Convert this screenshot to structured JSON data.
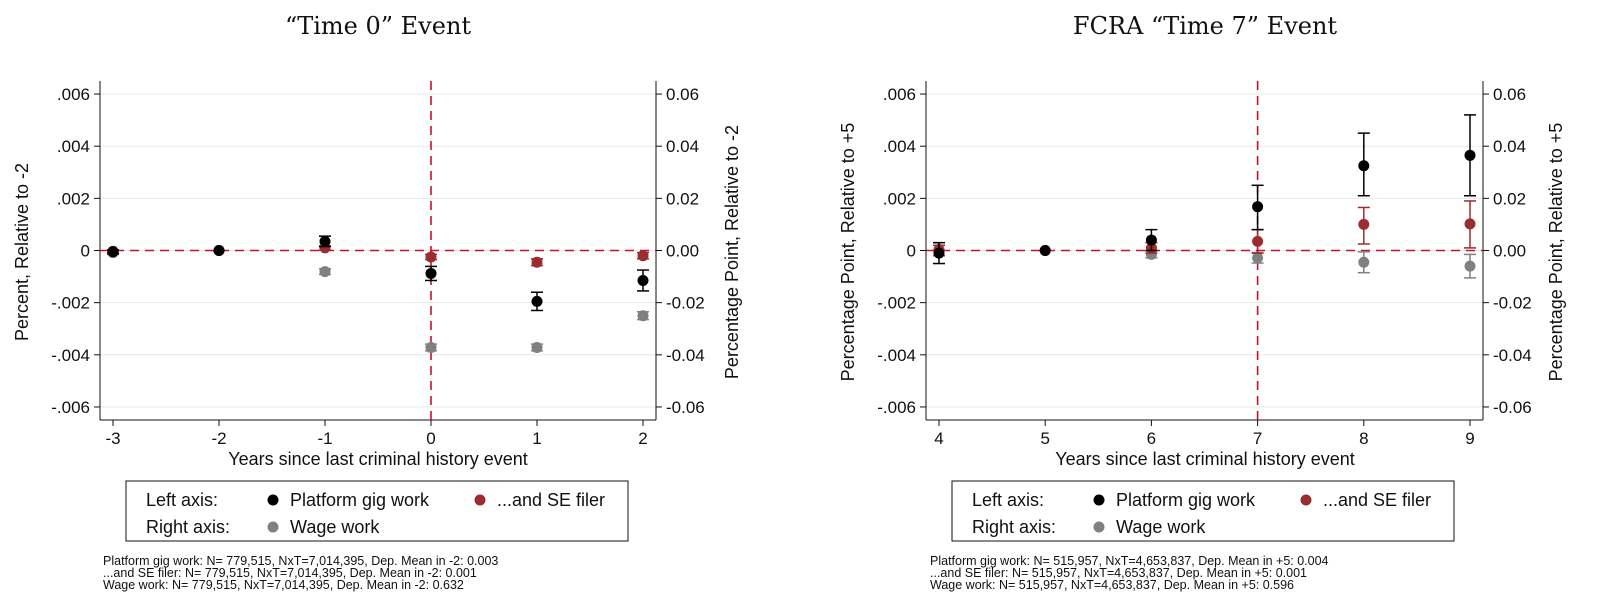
{
  "chart_data": [
    {
      "type": "scatter",
      "title": "“Time 0” Event",
      "xlabel": "Years since last criminal history event",
      "ylabel_left": "Percent, Relative to -2",
      "ylabel_right": "Percentage Point, Relative to -2",
      "x_ticks": [
        "-3",
        "-2",
        "-1",
        "0",
        "1",
        "2"
      ],
      "x_values": [
        -3,
        -2,
        -1,
        0,
        1,
        2
      ],
      "xlim": [
        -3,
        2
      ],
      "ylim_left": [
        -0.0065,
        0.0065
      ],
      "ylim_right": [
        -0.065,
        0.065
      ],
      "y_ticks_left": [
        {
          "value": 0.006,
          "label": ".006"
        },
        {
          "value": 0.004,
          "label": ".004"
        },
        {
          "value": 0.002,
          "label": ".002"
        },
        {
          "value": 0,
          "label": "0"
        },
        {
          "value": -0.002,
          "label": "-.002"
        },
        {
          "value": -0.004,
          "label": "-.004"
        },
        {
          "value": -0.006,
          "label": "-.006"
        }
      ],
      "y_ticks_right": [
        {
          "value": 0.06,
          "label": "0.06"
        },
        {
          "value": 0.04,
          "label": "0.04"
        },
        {
          "value": 0.02,
          "label": "0.02"
        },
        {
          "value": 0,
          "label": "0.00"
        },
        {
          "value": -0.02,
          "label": "-0.02"
        },
        {
          "value": -0.04,
          "label": "-0.04"
        },
        {
          "value": -0.06,
          "label": "-0.06"
        }
      ],
      "event_x": 0,
      "grid": true,
      "series": [
        {
          "name": "Platform gig work",
          "axis": "left",
          "color": "#000000",
          "x": [
            -3,
            -2,
            -1,
            0,
            1,
            2
          ],
          "y": [
            -5e-05,
            0,
            0.00035,
            -0.00088,
            -0.00195,
            -0.00115
          ],
          "ci_low": [
            -0.00012,
            0,
            0.00015,
            -0.00115,
            -0.0023,
            -0.00155
          ],
          "ci_high": [
            2e-05,
            0,
            0.00055,
            -0.00061,
            -0.0016,
            -0.00075
          ]
        },
        {
          "name": "...and SE filer",
          "axis": "left",
          "color": "#9b2d30",
          "x": [
            -3,
            -2,
            -1,
            0,
            1,
            2
          ],
          "y": [
            -3e-05,
            0,
            0.0001,
            -0.00025,
            -0.00045,
            -0.0002
          ],
          "ci_low": [
            -8e-05,
            0,
            2e-05,
            -0.00035,
            -0.00058,
            -0.00032
          ],
          "ci_high": [
            2e-05,
            0,
            0.00018,
            -0.00015,
            -0.00032,
            -8e-05
          ]
        },
        {
          "name": "Wage work",
          "axis": "right",
          "color": "#808080",
          "x": [
            -3,
            -2,
            -1,
            0,
            1,
            2
          ],
          "y": [
            -0.0008,
            0,
            -0.0081,
            -0.0372,
            -0.0372,
            -0.025
          ],
          "ci_low": [
            -0.0015,
            0,
            -0.0092,
            -0.0385,
            -0.0385,
            -0.0265
          ],
          "ci_high": [
            -0.0001,
            0,
            -0.007,
            -0.0359,
            -0.0359,
            -0.0235
          ]
        }
      ],
      "legend": {
        "left_label": "Left axis:",
        "right_label": "Right axis:",
        "entries": [
          "Platform gig work",
          "...and SE filer",
          "Wage work"
        ]
      },
      "notes": [
        "Platform gig work: N=  779,515, NxT=7,014,395, Dep. Mean in -2: 0.003",
        "...and SE filer: N=  779,515, NxT=7,014,395, Dep. Mean in -2: 0.001",
        "Wage work: N=  779,515, NxT=7,014,395, Dep. Mean in -2: 0.632"
      ]
    },
    {
      "type": "scatter",
      "title": "FCRA “Time 7” Event",
      "xlabel": "Years since last criminal history event",
      "ylabel_left": "Percentage Point, Relative to +5",
      "ylabel_right": "Percentage Point, Relative to +5",
      "x_ticks": [
        "4",
        "5",
        "6",
        "7",
        "8",
        "9"
      ],
      "x_values": [
        4,
        5,
        6,
        7,
        8,
        9
      ],
      "xlim": [
        4,
        9
      ],
      "ylim_left": [
        -0.0065,
        0.0065
      ],
      "ylim_right": [
        -0.065,
        0.065
      ],
      "y_ticks_left": [
        {
          "value": 0.006,
          "label": ".006"
        },
        {
          "value": 0.004,
          "label": ".004"
        },
        {
          "value": 0.002,
          "label": ".002"
        },
        {
          "value": 0,
          "label": "0"
        },
        {
          "value": -0.002,
          "label": "-.002"
        },
        {
          "value": -0.004,
          "label": "-.004"
        },
        {
          "value": -0.006,
          "label": "-.006"
        }
      ],
      "y_ticks_right": [
        {
          "value": 0.06,
          "label": "0.06"
        },
        {
          "value": 0.04,
          "label": "0.04"
        },
        {
          "value": 0.02,
          "label": "0.02"
        },
        {
          "value": 0,
          "label": "0.00"
        },
        {
          "value": -0.02,
          "label": "-0.02"
        },
        {
          "value": -0.04,
          "label": "-0.04"
        },
        {
          "value": -0.06,
          "label": "-0.06"
        }
      ],
      "event_x": 7,
      "grid": true,
      "series": [
        {
          "name": "Platform gig work",
          "axis": "left",
          "color": "#000000",
          "x": [
            4,
            5,
            6,
            7,
            8,
            9
          ],
          "y": [
            -0.0001,
            0,
            0.0004,
            0.00168,
            0.00325,
            0.00365
          ],
          "ci_low": [
            -0.0005,
            0,
            0.0,
            0.0008,
            0.0021,
            0.0021
          ],
          "ci_high": [
            0.0003,
            0,
            0.0008,
            0.0025,
            0.0045,
            0.0052
          ]
        },
        {
          "name": "...and SE filer",
          "axis": "left",
          "color": "#9b2d30",
          "x": [
            4,
            5,
            6,
            7,
            8,
            9
          ],
          "y": [
            0.0,
            0,
            0.0001,
            0.00035,
            0.001,
            0.00102
          ],
          "ci_low": [
            -0.0002,
            0,
            -0.0001,
            -0.0001,
            0.00025,
            0.0001
          ],
          "ci_high": [
            0.0002,
            0,
            0.0003,
            0.0008,
            0.00165,
            0.0019
          ]
        },
        {
          "name": "Wage work",
          "axis": "right",
          "color": "#808080",
          "x": [
            4,
            5,
            6,
            7,
            8,
            9
          ],
          "y": [
            0.0005,
            0,
            -0.0015,
            -0.0028,
            -0.0045,
            -0.006
          ],
          "ci_low": [
            -0.002,
            0,
            -0.0028,
            -0.0048,
            -0.0085,
            -0.0105
          ],
          "ci_high": [
            0.003,
            0,
            -0.0002,
            -0.0008,
            -0.0005,
            -0.0015
          ]
        }
      ],
      "legend": {
        "left_label": "Left axis:",
        "right_label": "Right axis:",
        "entries": [
          "Platform gig work",
          "...and SE filer",
          "Wage work"
        ]
      },
      "notes": [
        "Platform gig work: N=  515,957, NxT=4,653,837, Dep. Mean in +5: 0.004",
        "...and SE filer: N=  515,957, NxT=4,653,837, Dep. Mean in +5: 0.001",
        "Wage work: N=  515,957, NxT=4,653,837, Dep. Mean in +5: 0.596"
      ]
    }
  ]
}
